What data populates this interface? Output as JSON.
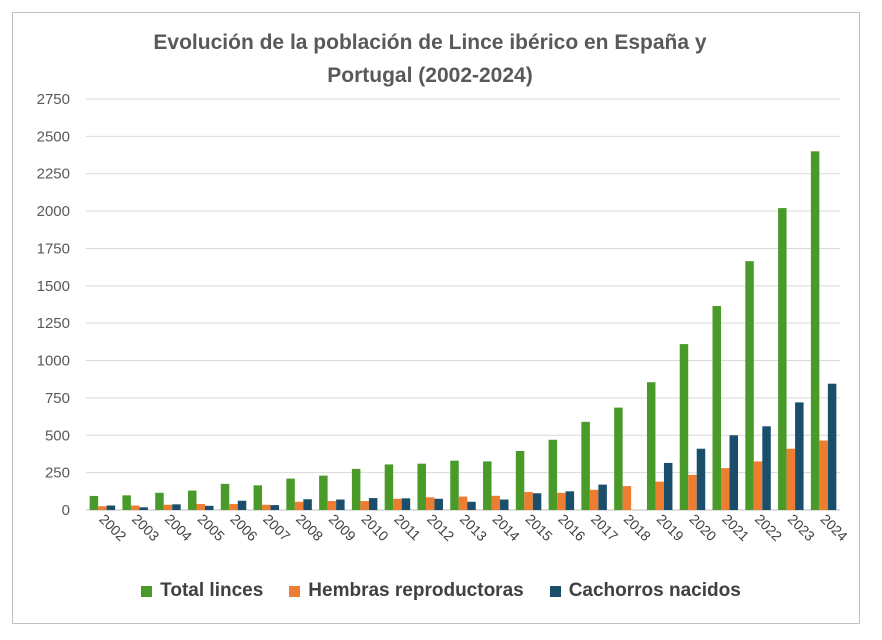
{
  "colors": {
    "total": "#4a9a2a",
    "hembras": "#ed7d31",
    "cachorros": "#1b4e6b",
    "grid": "#d9d9d9"
  },
  "chart_data": {
    "type": "bar",
    "title": "Evolución de la población de Lince ibérico en España y\nPortugal (2002-2024)",
    "xlabel": "",
    "ylabel": "",
    "ylim": [
      0,
      2750
    ],
    "yticks": [
      "0",
      "250",
      "500",
      "750",
      "1000",
      "1250",
      "1500",
      "1750",
      "2000",
      "2250",
      "2500",
      "2750"
    ],
    "grid": true,
    "legend_position": "bottom",
    "categories": [
      "2002",
      "2003",
      "2004",
      "2005",
      "2006",
      "2007",
      "2008",
      "2009",
      "2010",
      "2011",
      "2012",
      "2013",
      "2014",
      "2015",
      "2016",
      "2017",
      "2018",
      "2019",
      "2020",
      "2021",
      "2022",
      "2023",
      "2024"
    ],
    "series": [
      {
        "name": "Total linces",
        "color_key": "total",
        "values": [
          94,
          98,
          115,
          130,
          175,
          165,
          210,
          230,
          275,
          305,
          310,
          330,
          325,
          395,
          470,
          590,
          685,
          855,
          1110,
          1365,
          1665,
          2020,
          2400
        ]
      },
      {
        "name": "Hembras reproductoras",
        "color_key": "hembras",
        "values": [
          25,
          30,
          35,
          40,
          40,
          35,
          55,
          60,
          60,
          75,
          85,
          90,
          95,
          120,
          115,
          135,
          160,
          190,
          235,
          280,
          325,
          410,
          465
        ]
      },
      {
        "name": "Cachorros nacidos",
        "color_key": "cachorros",
        "values": [
          30,
          18,
          38,
          28,
          62,
          33,
          72,
          70,
          80,
          78,
          75,
          55,
          70,
          112,
          125,
          170,
          0,
          315,
          410,
          500,
          560,
          720,
          845
        ]
      }
    ]
  }
}
